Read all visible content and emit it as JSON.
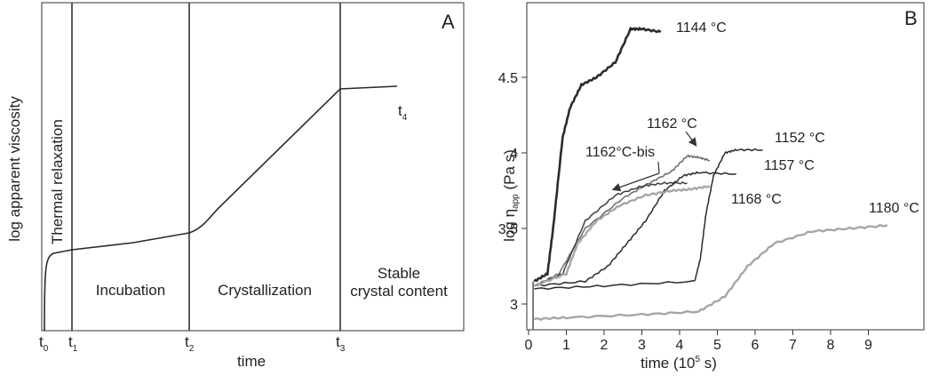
{
  "panel_a": {
    "letter": "A",
    "ylabel": "log apparent viscosity",
    "xlabel": "time",
    "time_marks": [
      {
        "main": "t",
        "sub": "0"
      },
      {
        "main": "t",
        "sub": "1"
      },
      {
        "main": "t",
        "sub": "2"
      },
      {
        "main": "t",
        "sub": "3"
      },
      {
        "main": "t",
        "sub": "4"
      }
    ],
    "phases": {
      "thermal_relaxation": "Thermal relaxation",
      "incubation": "Incubation",
      "crystallization": "Crystallization",
      "stable_line1": "Stable",
      "stable_line2": "crystal content"
    }
  },
  "chart_data": [
    {
      "type": "line",
      "panel": "A",
      "title": "",
      "xlabel": "time",
      "ylabel": "log apparent viscosity",
      "x_ticks": [
        "t0",
        "t1",
        "t2",
        "t3"
      ],
      "curve_label": "t4",
      "grid": false,
      "legend": "none"
    },
    {
      "type": "line",
      "panel": "B",
      "title": "",
      "xlabel": "time (10^5 s)",
      "ylabel": "log η_app (Pa s)",
      "xlim": [
        0,
        10
      ],
      "ylim": [
        2.83,
        5.0
      ],
      "x_ticks": [
        0,
        1,
        2,
        3,
        4,
        5,
        6,
        7,
        8,
        9
      ],
      "y_ticks": [
        3,
        3.5,
        4,
        4.5
      ],
      "grid": false,
      "legend": "none (curves labelled directly)",
      "series": [
        {
          "name": "1144 °C",
          "color": "#2b2b2b",
          "x": [
            0.15,
            0.5,
            0.65,
            0.9,
            1.1,
            1.4,
            1.8,
            2.3,
            2.7,
            3.0,
            3.5
          ],
          "y": [
            3.15,
            3.2,
            3.5,
            4.1,
            4.3,
            4.45,
            4.5,
            4.6,
            4.82,
            4.82,
            4.8
          ]
        },
        {
          "name": "1162 °C",
          "color": "#6a6a6a",
          "x": [
            0.15,
            0.8,
            1.5,
            2.5,
            3.2,
            3.8,
            4.2,
            4.5,
            4.8
          ],
          "y": [
            3.12,
            3.2,
            3.5,
            3.7,
            3.8,
            3.88,
            3.98,
            3.97,
            3.95
          ]
        },
        {
          "name": "1162°C-bis",
          "color": "#3e3e3e",
          "x": [
            0.15,
            0.9,
            1.5,
            2.3,
            3.0,
            3.6,
            4.2
          ],
          "y": [
            3.12,
            3.2,
            3.55,
            3.72,
            3.78,
            3.8,
            3.8
          ]
        },
        {
          "name": "1152 °C",
          "color": "#2b2b2b",
          "x": [
            0.15,
            2.0,
            4.4,
            4.55,
            4.7,
            4.9,
            5.2,
            5.5,
            6.2
          ],
          "y": [
            3.1,
            3.12,
            3.15,
            3.3,
            3.6,
            3.85,
            4.0,
            4.02,
            4.02
          ]
        },
        {
          "name": "1157 °C",
          "color": "#2b2b2b",
          "x": [
            0.15,
            1.5,
            2.1,
            2.6,
            3.1,
            3.6,
            4.1,
            4.5,
            5.5
          ],
          "y": [
            3.12,
            3.15,
            3.25,
            3.4,
            3.55,
            3.75,
            3.85,
            3.87,
            3.86
          ]
        },
        {
          "name": "1168 °C",
          "color": "#a6a6a6",
          "x": [
            0.15,
            1.0,
            1.3,
            1.8,
            2.4,
            3.1,
            3.8,
            4.3,
            4.8
          ],
          "y": [
            3.12,
            3.2,
            3.4,
            3.55,
            3.65,
            3.72,
            3.75,
            3.76,
            3.78
          ]
        },
        {
          "name": "1180 °C",
          "color": "#a6a6a6",
          "x": [
            0.15,
            1.0,
            3.0,
            4.5,
            5.2,
            5.8,
            6.5,
            7.5,
            8.5,
            9.5
          ],
          "y": [
            2.9,
            2.91,
            2.93,
            2.95,
            3.05,
            3.25,
            3.4,
            3.48,
            3.5,
            3.52
          ]
        }
      ]
    }
  ],
  "panel_b": {
    "letter": "B",
    "ylabel_main": "log η",
    "ylabel_sub": "app",
    "ylabel_unit": " (Pa s)",
    "xlabel_main": "time (10",
    "xlabel_sup": "5",
    "xlabel_tail": " s)",
    "labels": {
      "s1144": "1144 °C",
      "s1162": "1162 °C",
      "s1162bis": "1162°C-bis",
      "s1152": "1152 °C",
      "s1157": "1157 °C",
      "s1168": "1168 °C",
      "s1180": "1180 °C"
    },
    "y_tick_labels": [
      "3",
      "3.5",
      "4",
      "4.5"
    ],
    "x_tick_labels": [
      "0",
      "1",
      "2",
      "3",
      "4",
      "5",
      "6",
      "7",
      "8",
      "9"
    ]
  }
}
